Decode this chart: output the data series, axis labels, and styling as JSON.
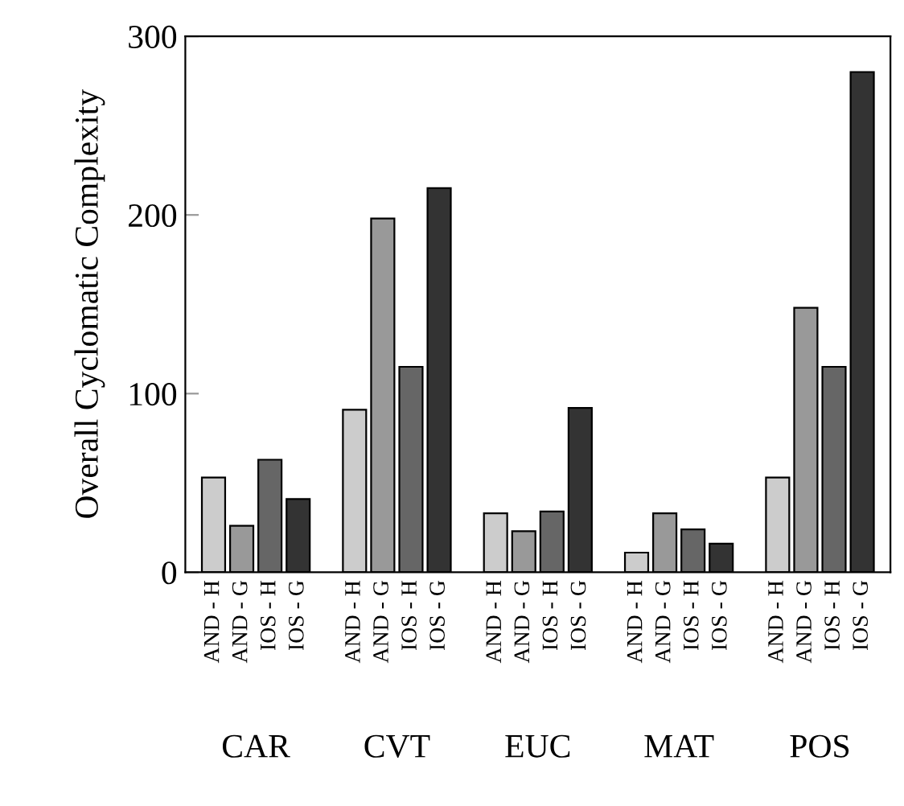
{
  "chart_data": {
    "type": "bar",
    "ylabel": "Overall Cyclomatic Complexity",
    "categories": [
      "CAR",
      "CVT",
      "EUC",
      "MAT",
      "POS"
    ],
    "series": [
      {
        "name": "AND - H",
        "color": "#cccccc",
        "values": [
          53,
          91,
          33,
          11,
          53
        ]
      },
      {
        "name": "AND - G",
        "color": "#999999",
        "values": [
          26,
          198,
          23,
          33,
          148
        ]
      },
      {
        "name": "IOS - H",
        "color": "#666666",
        "values": [
          63,
          115,
          34,
          24,
          115
        ]
      },
      {
        "name": "IOS - G",
        "color": "#333333",
        "values": [
          41,
          215,
          92,
          16,
          280
        ]
      }
    ],
    "ylim": [
      0,
      300
    ],
    "yticks": [
      0,
      100,
      200,
      300
    ],
    "grid": false,
    "legend": false
  }
}
